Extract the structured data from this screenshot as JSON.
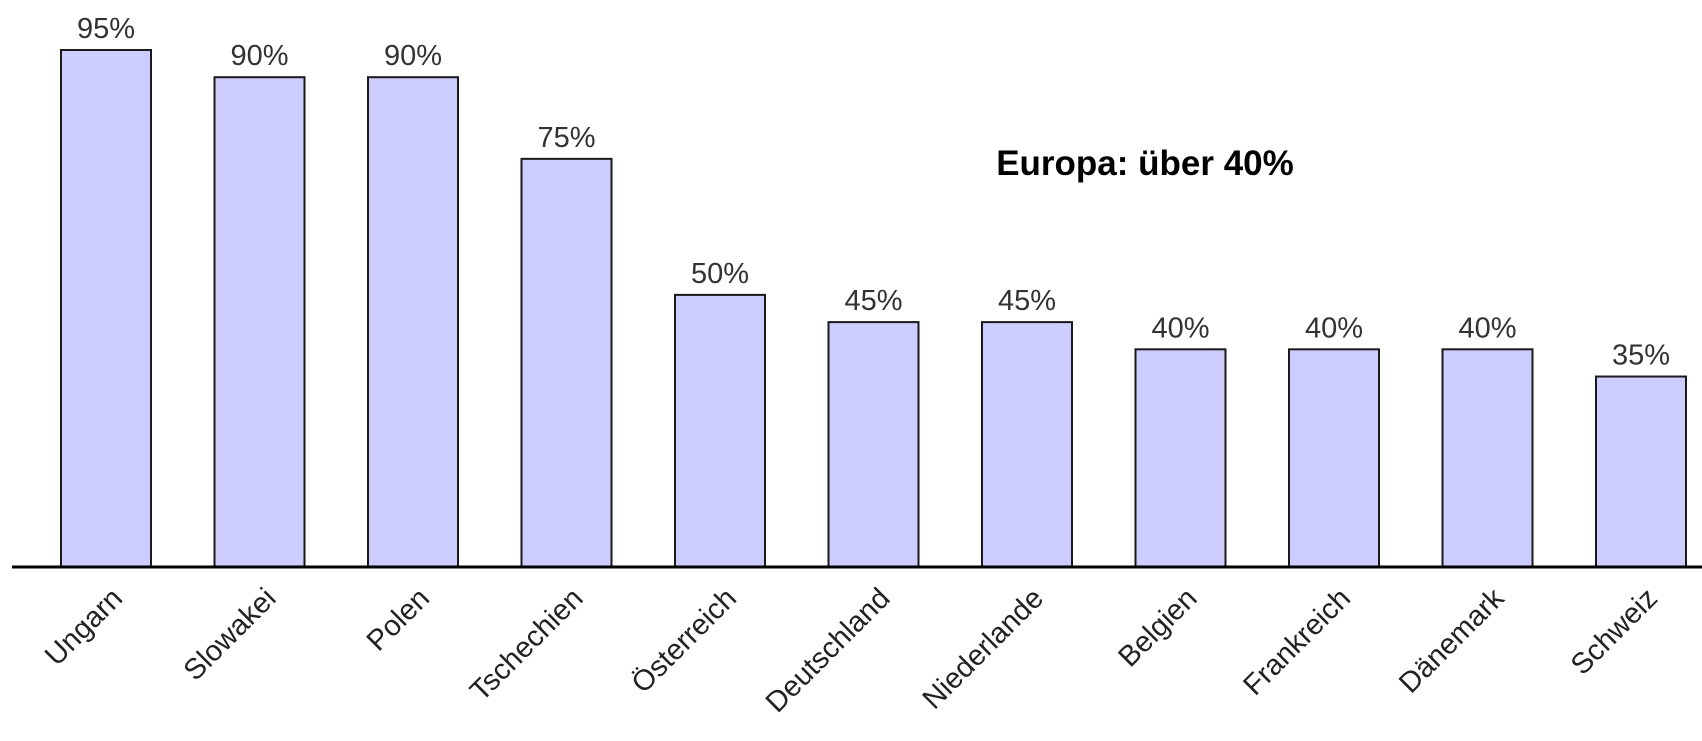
{
  "chart_data": {
    "type": "bar",
    "categories": [
      "Ungarn",
      "Slowakei",
      "Polen",
      "Tschechien",
      "Österreich",
      "Deutschland",
      "Niederlande",
      "Belgien",
      "Frankreich",
      "Dänemark",
      "Schweiz"
    ],
    "values": [
      95,
      90,
      90,
      75,
      50,
      45,
      45,
      40,
      40,
      40,
      35
    ],
    "value_labels": [
      "95%",
      "90%",
      "90%",
      "75%",
      "50%",
      "45%",
      "45%",
      "40%",
      "40%",
      "40%",
      "35%"
    ],
    "annotation": "Europa: über 40%",
    "ylim": [
      0,
      95
    ],
    "grid": false,
    "colors": {
      "bar_fill": "#ccccff",
      "bar_stroke": "#1a1a1a",
      "axis": "#000000"
    }
  }
}
